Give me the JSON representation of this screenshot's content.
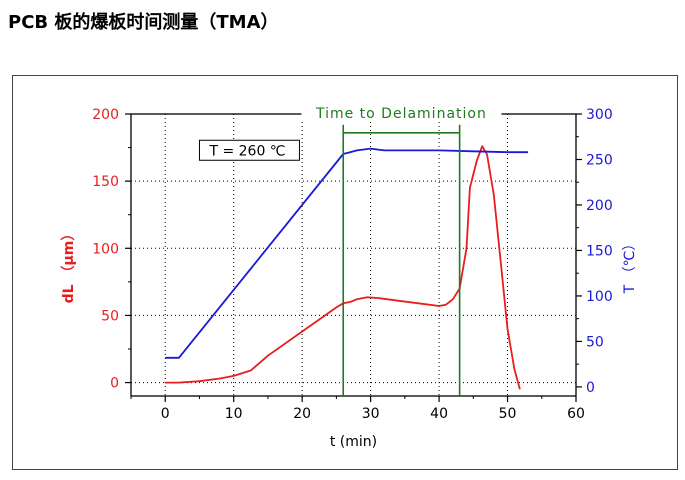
{
  "title": "PCB 板的爆板时间测量（TMA）",
  "chart_data": {
    "type": "line",
    "xlabel": "t (min)",
    "ylabel_left": "dL （μm）",
    "ylabel_right": "T （℃）",
    "xlim": [
      -5,
      60
    ],
    "ylim_left": [
      -10,
      200
    ],
    "ylim_right": [
      -10,
      300
    ],
    "xticks": [
      0,
      10,
      20,
      30,
      40,
      50,
      60
    ],
    "yticks_left": [
      0,
      50,
      100,
      150,
      200
    ],
    "yticks_right": [
      0,
      50,
      100,
      150,
      200,
      250,
      300
    ],
    "grid": true,
    "colors": {
      "left_axis": "#e81e1e",
      "right_axis": "#1a1ad6",
      "bracket": "#1f7a1f"
    },
    "series": [
      {
        "axis": "left",
        "color": "#e81e1e",
        "x": [
          0,
          2,
          5,
          8,
          10,
          12.5,
          15,
          20,
          25,
          26,
          27,
          28,
          29.5,
          31,
          34,
          37,
          40,
          41,
          42,
          43,
          44,
          44.5,
          45.5,
          46.3,
          47,
          48,
          49,
          50,
          51,
          51.8
        ],
        "y": [
          0,
          0,
          1,
          3,
          5,
          9,
          20,
          38,
          56,
          59,
          60,
          62,
          63.5,
          63,
          61,
          59,
          57,
          58,
          62,
          70,
          100,
          145,
          165,
          176,
          170,
          140,
          90,
          40,
          10,
          -5
        ]
      },
      {
        "axis": "right",
        "color": "#1a1ad6",
        "x": [
          0,
          2,
          26,
          27,
          28,
          30,
          32,
          40,
          45,
          50,
          53
        ],
        "y": [
          32,
          32,
          256,
          258,
          260,
          262,
          260,
          260,
          259,
          258,
          258
        ]
      }
    ],
    "annotations": [
      {
        "type": "bracket",
        "text": "Time to Delamination",
        "x_start": 26,
        "x_end": 43,
        "y": 186
      },
      {
        "type": "box",
        "text": "T = 260 ℃",
        "x": 5,
        "y": 173
      }
    ]
  }
}
